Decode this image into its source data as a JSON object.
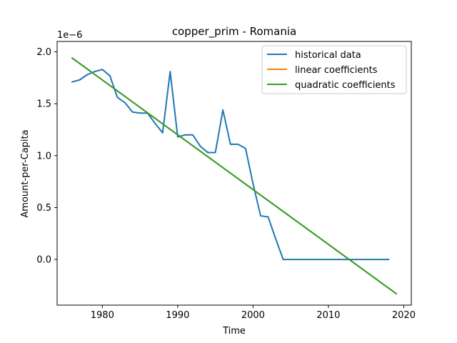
{
  "chart_data": {
    "type": "line",
    "title": "copper_prim - Romania",
    "xlabel": "Time",
    "ylabel": "Amount-per-Capita",
    "y_offset_label": "1e−6",
    "xlim": [
      1974,
      2021
    ],
    "ylim": [
      -0.44,
      2.1
    ],
    "x_ticks": [
      1980,
      1990,
      2000,
      2010,
      2020
    ],
    "y_ticks": [
      0.0,
      0.5,
      1.0,
      1.5,
      2.0
    ],
    "x_tick_labels": [
      "1980",
      "1990",
      "2000",
      "2010",
      "2020"
    ],
    "y_tick_labels": [
      "0.0",
      "0.5",
      "1.0",
      "1.5",
      "2.0"
    ],
    "grid": false,
    "legend_position": "top-right",
    "series": [
      {
        "name": "historical data",
        "color": "#1f77b4",
        "x": [
          1976,
          1977,
          1978,
          1979,
          1980,
          1981,
          1982,
          1983,
          1984,
          1985,
          1986,
          1987,
          1988,
          1989,
          1990,
          1991,
          1992,
          1993,
          1994,
          1995,
          1996,
          1997,
          1998,
          1999,
          2000,
          2001,
          2002,
          2003,
          2004,
          2005,
          2006,
          2007,
          2008,
          2009,
          2010,
          2011,
          2012,
          2013,
          2014,
          2015,
          2016,
          2017,
          2018
        ],
        "y": [
          1.71,
          1.73,
          1.78,
          1.81,
          1.83,
          1.77,
          1.56,
          1.51,
          1.42,
          1.41,
          1.41,
          1.31,
          1.22,
          1.81,
          1.18,
          1.2,
          1.2,
          1.09,
          1.03,
          1.03,
          1.44,
          1.11,
          1.11,
          1.07,
          0.73,
          0.42,
          0.41,
          0.2,
          0.0,
          0.0,
          0.0,
          0.0,
          0.0,
          0.0,
          0.0,
          0.0,
          0.0,
          0.0,
          0.0,
          0.0,
          0.0,
          0.0,
          0.0
        ]
      },
      {
        "name": "linear coefficients",
        "color": "#ff7f0e",
        "x": [
          1976,
          2019
        ],
        "y": [
          1.94,
          -0.33
        ]
      },
      {
        "name": "quadratic coefficients",
        "color": "#2ca02c",
        "x": [
          1976,
          2019
        ],
        "y": [
          1.94,
          -0.33
        ]
      }
    ]
  }
}
